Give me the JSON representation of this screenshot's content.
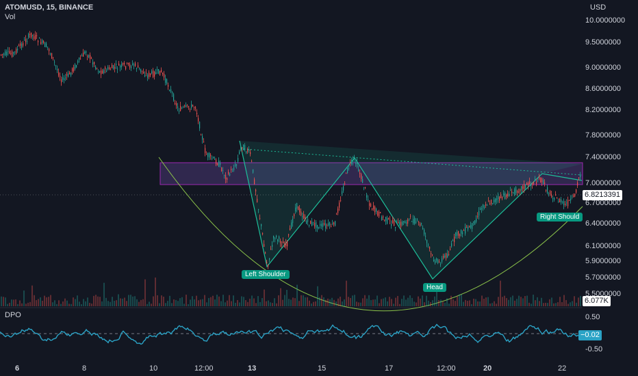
{
  "header": {
    "symbol": "ATOMUSD, 15, BINANCE",
    "volume_label": "Vol"
  },
  "price_axis": {
    "currency": "USD",
    "labels": [
      "10.0000000",
      "9.5000000",
      "9.0000000",
      "8.6000000",
      "8.2000000",
      "7.8000000",
      "7.4000000",
      "7.0000000",
      "6.7000000",
      "6.4000000",
      "6.1000000",
      "5.9000000",
      "5.7000000",
      "5.5000000"
    ],
    "current_price": "6.8213391",
    "volume_value": "6.077K"
  },
  "dpo": {
    "label": "DPO",
    "axis": [
      "0.50",
      "-0.50"
    ],
    "current_value": "−0.02"
  },
  "time_axis": {
    "labels": [
      {
        "text": "6",
        "bold": true
      },
      {
        "text": "8",
        "bold": false
      },
      {
        "text": "10",
        "bold": false
      },
      {
        "text": "12:00",
        "bold": false
      },
      {
        "text": "13",
        "bold": true
      },
      {
        "text": "15",
        "bold": false
      },
      {
        "text": "17",
        "bold": false
      },
      {
        "text": "12:00",
        "bold": false
      },
      {
        "text": "20",
        "bold": true
      },
      {
        "text": "22",
        "bold": false
      }
    ]
  },
  "pattern": {
    "left_shoulder": "Left Shoulder",
    "head": "Head",
    "right_shoulder": "Right Should"
  },
  "colors": {
    "background": "#131722",
    "up": "#26a69a",
    "down": "#ef5350",
    "dpo_line": "#2ba3c6",
    "pattern_line": "#1dbf9a",
    "zone_border": "#9c27b0",
    "zone_fill": "#7e57c2"
  }
}
